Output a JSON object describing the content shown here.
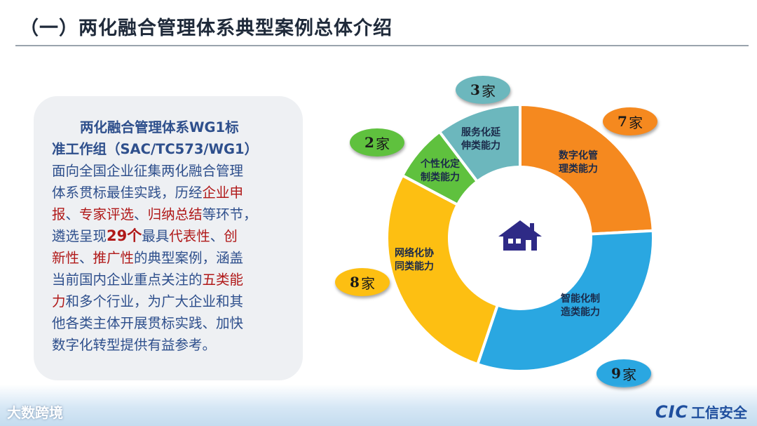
{
  "slide": {
    "title": "（一）两化融合管理体系典型案例总体介绍"
  },
  "card": {
    "heading_line1": "两化融合管理体系WG1标",
    "heading_line2": "准工作组（SAC/TC573/WG1）",
    "t1": "面向全国企业征集两化融合管理",
    "t2": "体系贯标最佳实践，历经",
    "t2_red": "企业申",
    "t3_red": "报",
    "t3a": "、",
    "t3_red2": "专家评选",
    "t3b": "、",
    "t3_red3": "归纳总结",
    "t3c": "等环节，",
    "t4": "遴选呈现",
    "t4_bold": "29个",
    "t4b": "最具",
    "t4_red": "代表性",
    "t4c": "、",
    "t4_red2": "创",
    "t5_red": "新性",
    "t5a": "、",
    "t5_red2": "推广性",
    "t5b": "的典型案例，涵盖",
    "t6": "当前国内企业重点关注的",
    "t6_red": "五类能",
    "t7_red": "力",
    "t7": "和多个行业，为广大企业和其",
    "t8": "他各类主体开展贯标实践、加快",
    "t9": "数字化转型提供有益参考。"
  },
  "chart_data": {
    "type": "pie",
    "style": "donut",
    "unit": "家",
    "categories": [
      "数字化管理类能力",
      "智能化制造类能力",
      "网络化协同类能力",
      "个性化定制类能力",
      "服务化延伸类能力"
    ],
    "values": [
      7,
      9,
      8,
      2,
      3
    ],
    "colors": [
      "#f5891f",
      "#2aa7e1",
      "#fdbf12",
      "#5fc13e",
      "#6cb7bd"
    ],
    "center_icon": "house-icon",
    "labels": {
      "seg0": [
        "数字化管",
        "理类能力"
      ],
      "seg1": [
        "智能化制",
        "造类能力"
      ],
      "seg2": [
        "网络化协",
        "同类能力"
      ],
      "seg3": [
        "个性化定",
        "制类能力"
      ],
      "seg4": [
        "服务化延",
        "伸类能力"
      ]
    },
    "counts": {
      "seg0": "7",
      "seg1": "9",
      "seg2": "8",
      "seg3": "2",
      "seg4": "3"
    }
  },
  "watermarks": {
    "left": "大数跨境",
    "right_logo": "CIC",
    "right_text": "工信安全"
  }
}
